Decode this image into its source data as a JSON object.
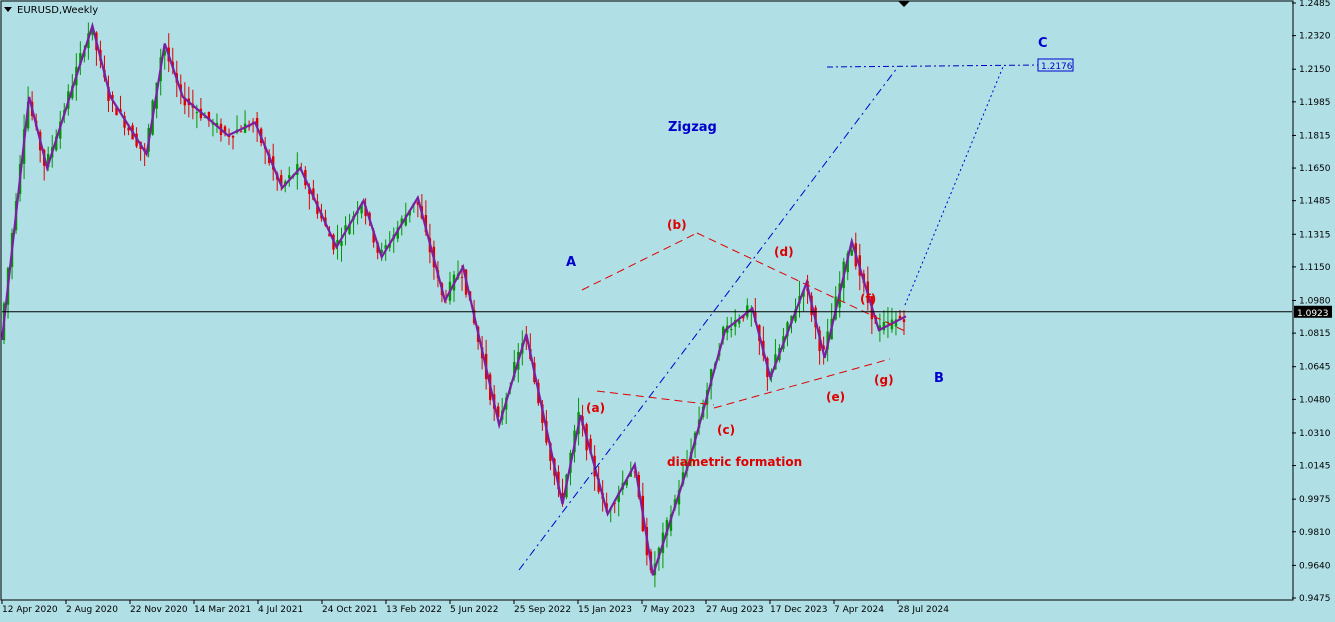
{
  "chart_data": {
    "type": "candlestick",
    "title": "EURUSD,Weekly",
    "yaxis": {
      "ticks": [
        "1.2485",
        "1.2320",
        "1.2150",
        "1.1985",
        "1.1815",
        "1.1650",
        "1.1485",
        "1.1315",
        "1.1150",
        "1.0980",
        "1.0815",
        "1.0645",
        "1.0480",
        "1.0310",
        "1.0145",
        "0.9975",
        "0.9810",
        "0.9640",
        "0.9475"
      ],
      "range": [
        0.9475,
        1.2485
      ],
      "current_price": "1.0923",
      "target_price": "1.2176"
    },
    "xaxis": {
      "ticks": [
        "12 Apr 2020",
        "2 Aug 2020",
        "22 Nov 2020",
        "14 Mar 2021",
        "4 Jul 2021",
        "24 Oct 2021",
        "13 Feb 2022",
        "5 Jun 2022",
        "25 Sep 2022",
        "15 Jan 2023",
        "7 May 2023",
        "27 Aug 2023",
        "17 Dec 2023",
        "7 Apr 2024",
        "28 Jul 2024"
      ]
    },
    "wave_labels": {
      "A": "A",
      "B": "B",
      "C": "C",
      "a": "(a)",
      "b": "(b)",
      "c": "(c)",
      "d": "(d)",
      "e": "(e)",
      "f": "(f)",
      "g": "(g)",
      "zigzag": "Zigzag",
      "diametric": "diametric formation"
    },
    "zigzag_path": [
      [
        0,
        1.078
      ],
      [
        0.03,
        1.201
      ],
      [
        0.05,
        1.165
      ],
      [
        0.1,
        1.237
      ],
      [
        0.12,
        1.201
      ],
      [
        0.16,
        1.172
      ],
      [
        0.18,
        1.228
      ],
      [
        0.2,
        1.201
      ],
      [
        0.25,
        1.1815
      ],
      [
        0.28,
        1.188
      ],
      [
        0.31,
        1.155
      ],
      [
        0.33,
        1.165
      ],
      [
        0.37,
        1.125
      ],
      [
        0.4,
        1.1485
      ],
      [
        0.42,
        1.12
      ],
      [
        0.46,
        1.15
      ],
      [
        0.49,
        1.098
      ],
      [
        0.51,
        1.115
      ],
      [
        0.55,
        1.035
      ],
      [
        0.58,
        1.081
      ],
      [
        0.62,
        0.995
      ],
      [
        0.64,
        1.04
      ],
      [
        0.67,
        0.99
      ],
      [
        0.7,
        1.015
      ],
      [
        0.72,
        0.959
      ],
      [
        0.76,
        1.016
      ],
      [
        0.8,
        1.083
      ],
      [
        0.83,
        1.094
      ],
      [
        0.85,
        1.059
      ],
      [
        0.89,
        1.107
      ],
      [
        0.91,
        1.069
      ],
      [
        0.94,
        1.128
      ],
      [
        0.97,
        1.083
      ],
      [
        1.0,
        1.09
      ]
    ],
    "colors": {
      "background": "#b0e0e6",
      "bull": "#009600",
      "bear": "#e00000",
      "zigzag": "#7a1fa0",
      "wave_blue": "#0000cd",
      "triangle_red": "#e00000"
    }
  }
}
